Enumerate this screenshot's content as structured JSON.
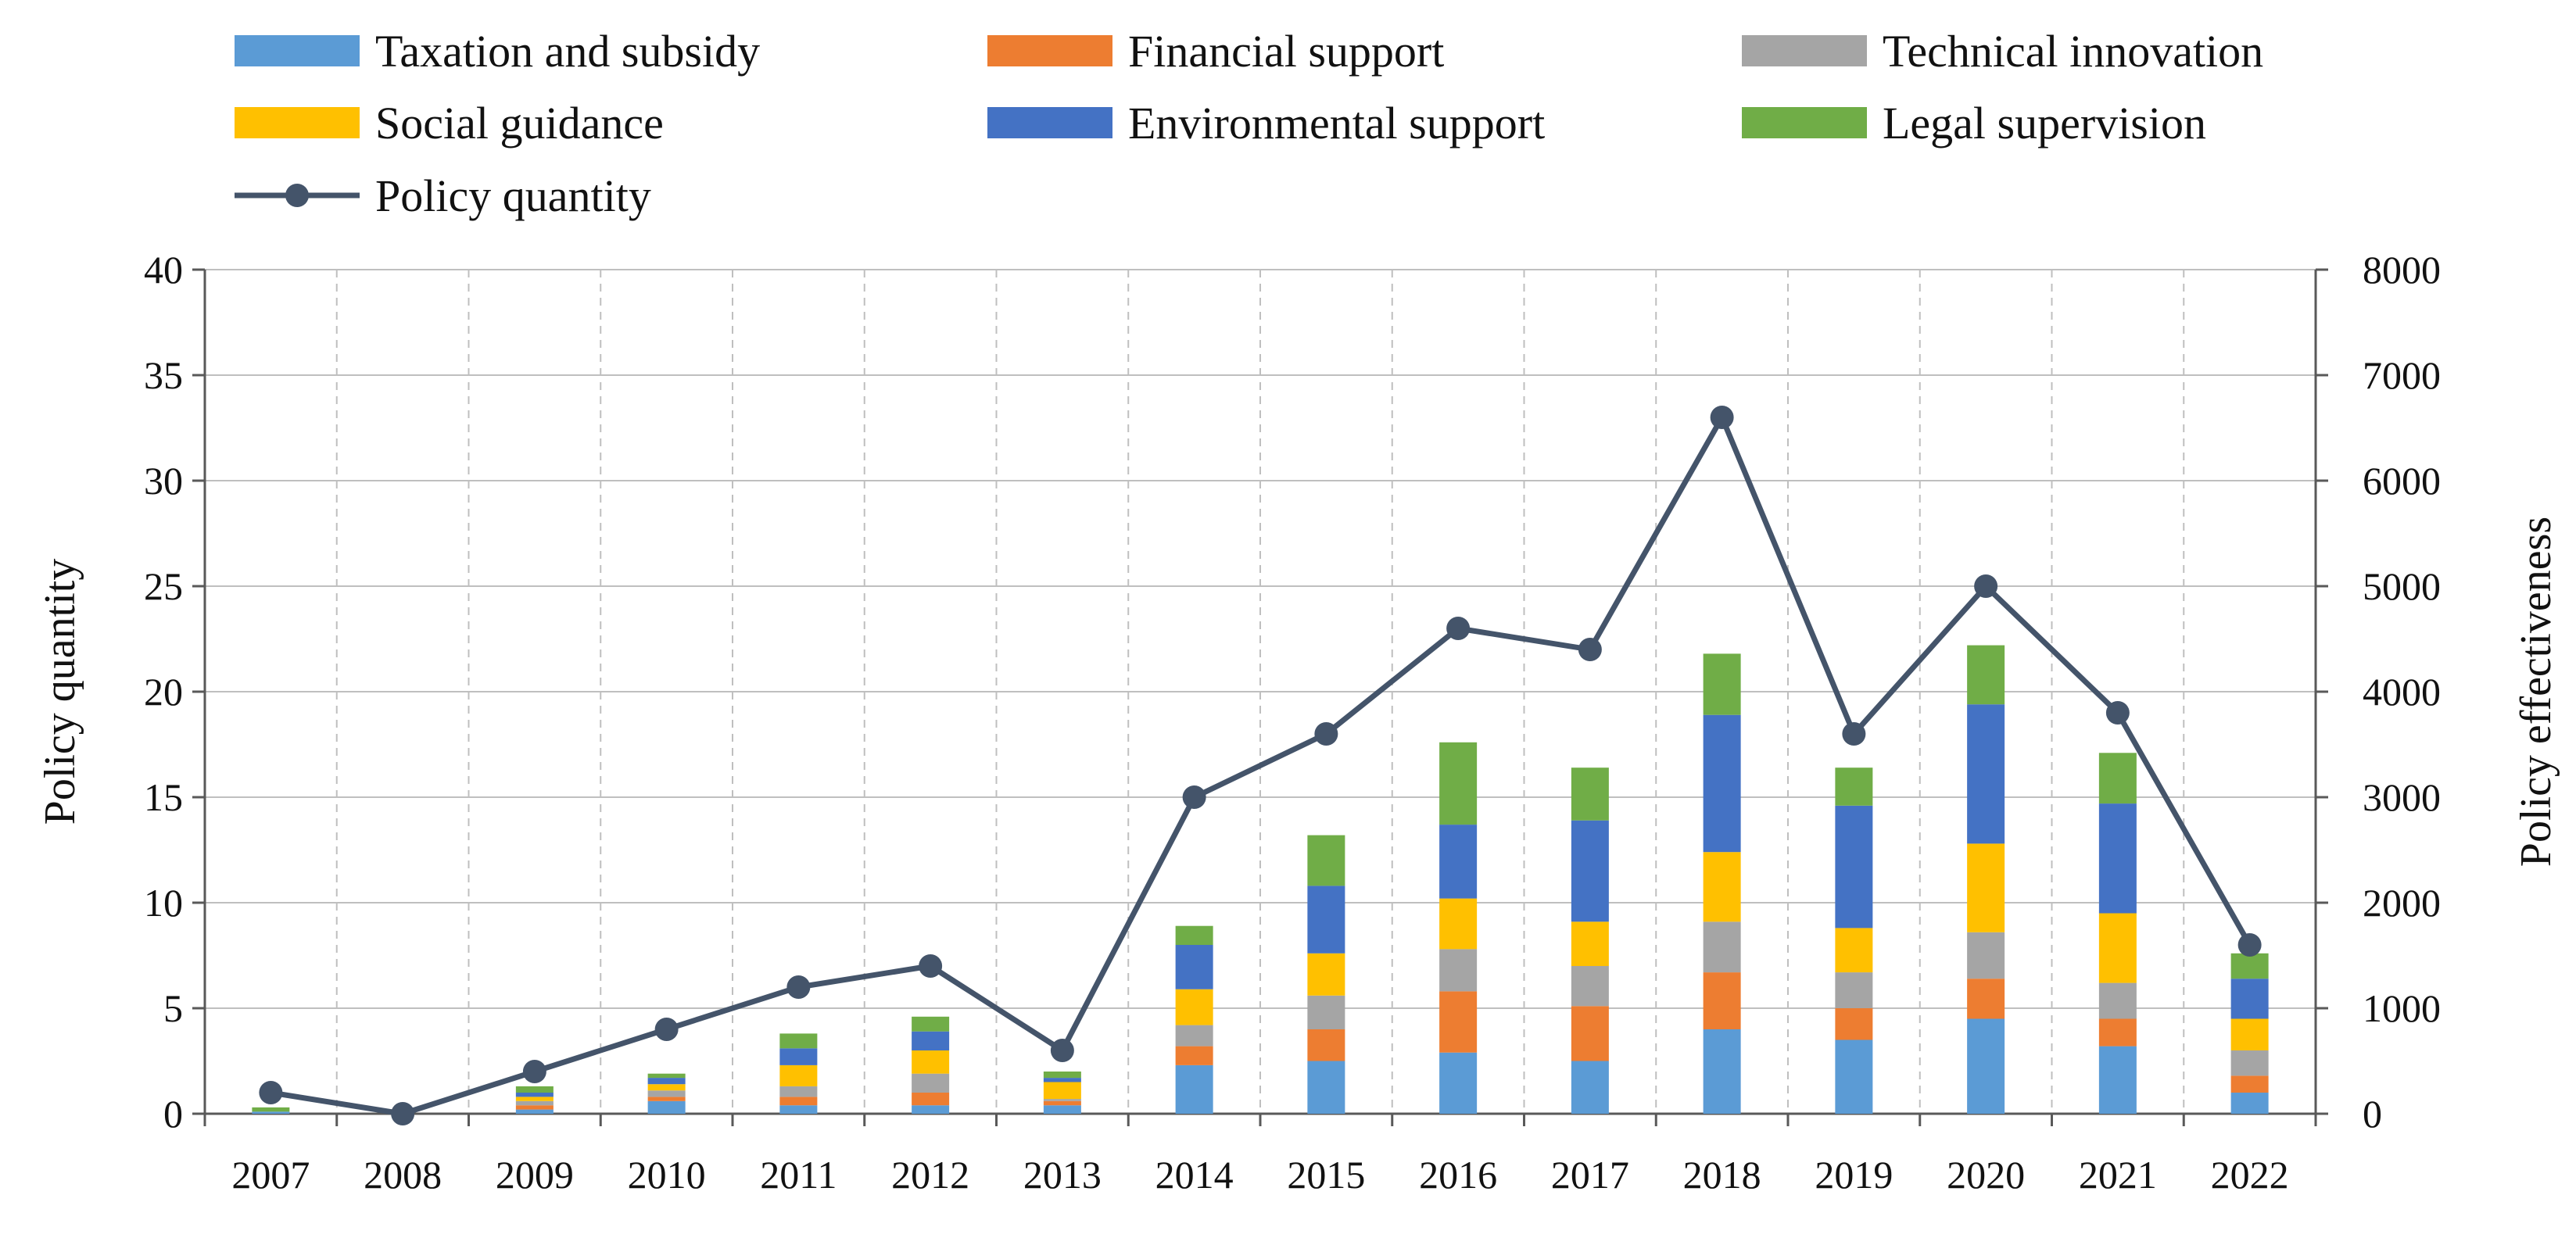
{
  "chart_data": {
    "type": "bar",
    "stacked": true,
    "categories": [
      "2007",
      "2008",
      "2009",
      "2010",
      "2011",
      "2012",
      "2013",
      "2014",
      "2015",
      "2016",
      "2017",
      "2018",
      "2019",
      "2020",
      "2021",
      "2022"
    ],
    "series": [
      {
        "name": "Taxation and subsidy",
        "color": "#5B9BD5",
        "values": [
          0.1,
          0,
          0.2,
          0.6,
          0.4,
          0.4,
          0.4,
          2.3,
          2.5,
          2.9,
          2.5,
          4.0,
          3.5,
          4.5,
          3.2,
          1.0
        ]
      },
      {
        "name": "Financial support",
        "color": "#ED7D31",
        "values": [
          0,
          0,
          0.2,
          0.2,
          0.4,
          0.6,
          0.2,
          0.9,
          1.5,
          2.9,
          2.6,
          2.7,
          1.5,
          1.9,
          1.3,
          0.8
        ]
      },
      {
        "name": "Technical innovation",
        "color": "#A5A5A5",
        "values": [
          0,
          0,
          0.2,
          0.3,
          0.5,
          0.9,
          0.1,
          1.0,
          1.6,
          2.0,
          1.9,
          2.4,
          1.7,
          2.2,
          1.7,
          1.2
        ]
      },
      {
        "name": "Social guidance",
        "color": "#FFC000",
        "values": [
          0,
          0,
          0.2,
          0.3,
          1.0,
          1.1,
          0.8,
          1.7,
          2.0,
          2.4,
          2.1,
          3.3,
          2.1,
          4.2,
          3.3,
          1.5
        ]
      },
      {
        "name": "Environmental support",
        "color": "#4472C4",
        "values": [
          0,
          0,
          0.2,
          0.3,
          0.8,
          0.9,
          0.2,
          2.1,
          3.2,
          3.5,
          4.8,
          6.5,
          5.8,
          6.6,
          5.2,
          1.9
        ]
      },
      {
        "name": "Legal supervision",
        "color": "#70AD47",
        "values": [
          0.2,
          0,
          0.3,
          0.2,
          0.7,
          0.7,
          0.3,
          0.9,
          2.4,
          3.9,
          2.5,
          2.9,
          1.8,
          2.8,
          2.4,
          1.2
        ]
      }
    ],
    "line": {
      "name": "Policy quantity",
      "color": "#44546A",
      "axis": "left",
      "values": [
        1,
        0,
        2,
        4,
        6,
        7,
        3,
        15,
        18,
        23,
        22,
        33,
        18,
        25,
        19,
        8
      ]
    },
    "title": "",
    "xlabel": "",
    "ylabel": "Policy quantity",
    "ylabel_right": "Policy effectiveness",
    "ylim": [
      0,
      40
    ],
    "ylim_right": [
      0,
      8000
    ],
    "yticks": [
      0,
      5,
      10,
      15,
      20,
      25,
      30,
      35,
      40
    ],
    "yticks_right": [
      0,
      1000,
      2000,
      3000,
      4000,
      5000,
      6000,
      7000,
      8000
    ],
    "grid": {
      "horizontal": "solid",
      "vertical": "dashed"
    },
    "legend_position": "top"
  }
}
